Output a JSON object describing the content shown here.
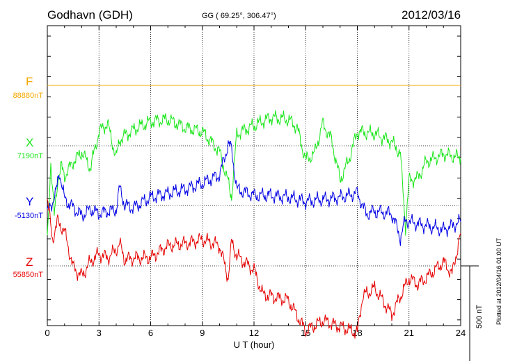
{
  "header": {
    "station": "Godhavn (GDH)",
    "coords": "GG ( 69.25°, 306.47°)",
    "date": "2012/03/16"
  },
  "components": [
    {
      "label": "F",
      "value": "88880nT",
      "color": "#f5a800"
    },
    {
      "label": "X",
      "value": "7190nT",
      "color": "#19e619"
    },
    {
      "label": "Y",
      "value": "-5130nT",
      "color": "#0000e6"
    },
    {
      "label": "Z",
      "value": "55850nT",
      "color": "#e60000"
    }
  ],
  "footer": {
    "plotted": "Plotted at 2012/04/16 01:00 UT"
  },
  "chart_data": {
    "type": "line",
    "xlabel": "U T (hour)",
    "xlim": [
      0,
      24
    ],
    "xticks": [
      "0",
      "3",
      "6",
      "9",
      "12",
      "15",
      "18",
      "21",
      "24"
    ],
    "scale_bar": "500 nT",
    "grid": true,
    "series": [
      {
        "name": "F",
        "color": "#f5a800",
        "x": [
          0,
          24
        ],
        "y": [
          0,
          0
        ]
      },
      {
        "name": "X",
        "color": "#19e619",
        "x": [
          0,
          0.2,
          0.4,
          0.6,
          0.8,
          1.0,
          1.5,
          2.0,
          2.5,
          3.0,
          3.5,
          4.0,
          4.2,
          4.5,
          5,
          6,
          7,
          8,
          9,
          10,
          10.5,
          10.7,
          11,
          12,
          13,
          14,
          14.5,
          15,
          15.5,
          16,
          16.5,
          17,
          17.5,
          18,
          19,
          20,
          20.5,
          20.8,
          21,
          21.5,
          22,
          23,
          24
        ],
        "y": [
          -460,
          -80,
          -350,
          -170,
          -100,
          -150,
          -80,
          -30,
          -110,
          70,
          110,
          -60,
          30,
          50,
          80,
          120,
          130,
          90,
          70,
          -30,
          -180,
          -250,
          60,
          100,
          140,
          130,
          90,
          -70,
          -40,
          110,
          30,
          -170,
          -70,
          70,
          60,
          20,
          -40,
          -400,
          -170,
          -160,
          -80,
          -40,
          -60
        ]
      },
      {
        "name": "Y",
        "color": "#0000e6",
        "x": [
          0,
          0.5,
          0.7,
          1,
          1.5,
          2,
          2.5,
          3,
          3.5,
          4,
          4.2,
          4.5,
          5,
          6,
          7,
          8,
          9,
          10,
          10.5,
          10.7,
          11,
          12,
          13,
          14,
          15,
          16,
          17,
          18,
          18.5,
          19,
          20,
          20.5,
          20.8,
          21,
          21.5,
          22,
          23,
          24
        ],
        "y": [
          -40,
          60,
          170,
          30,
          -10,
          -50,
          -20,
          -40,
          -30,
          -20,
          90,
          0,
          -10,
          40,
          60,
          80,
          110,
          150,
          300,
          280,
          80,
          50,
          50,
          40,
          20,
          30,
          40,
          60,
          -40,
          -30,
          -40,
          -160,
          -70,
          -80,
          -90,
          -100,
          -120,
          -80
        ]
      },
      {
        "name": "Z",
        "color": "#e60000",
        "x": [
          0,
          0.3,
          0.6,
          1,
          1.5,
          2,
          2.5,
          3,
          3.5,
          4,
          4.2,
          4.5,
          5,
          6,
          7,
          8,
          9,
          10,
          10.5,
          10.7,
          11,
          12,
          12.5,
          13,
          14,
          15,
          16,
          17,
          18,
          18.3,
          19,
          20,
          21,
          21.5,
          22,
          23,
          23.5,
          24
        ],
        "y": [
          330,
          130,
          220,
          170,
          -10,
          -50,
          20,
          60,
          40,
          80,
          110,
          30,
          40,
          40,
          100,
          110,
          130,
          100,
          -60,
          120,
          50,
          -20,
          -140,
          -150,
          -170,
          -320,
          -270,
          -300,
          -330,
          -150,
          -110,
          -240,
          -60,
          -90,
          -60,
          20,
          -40,
          160
        ]
      }
    ]
  }
}
